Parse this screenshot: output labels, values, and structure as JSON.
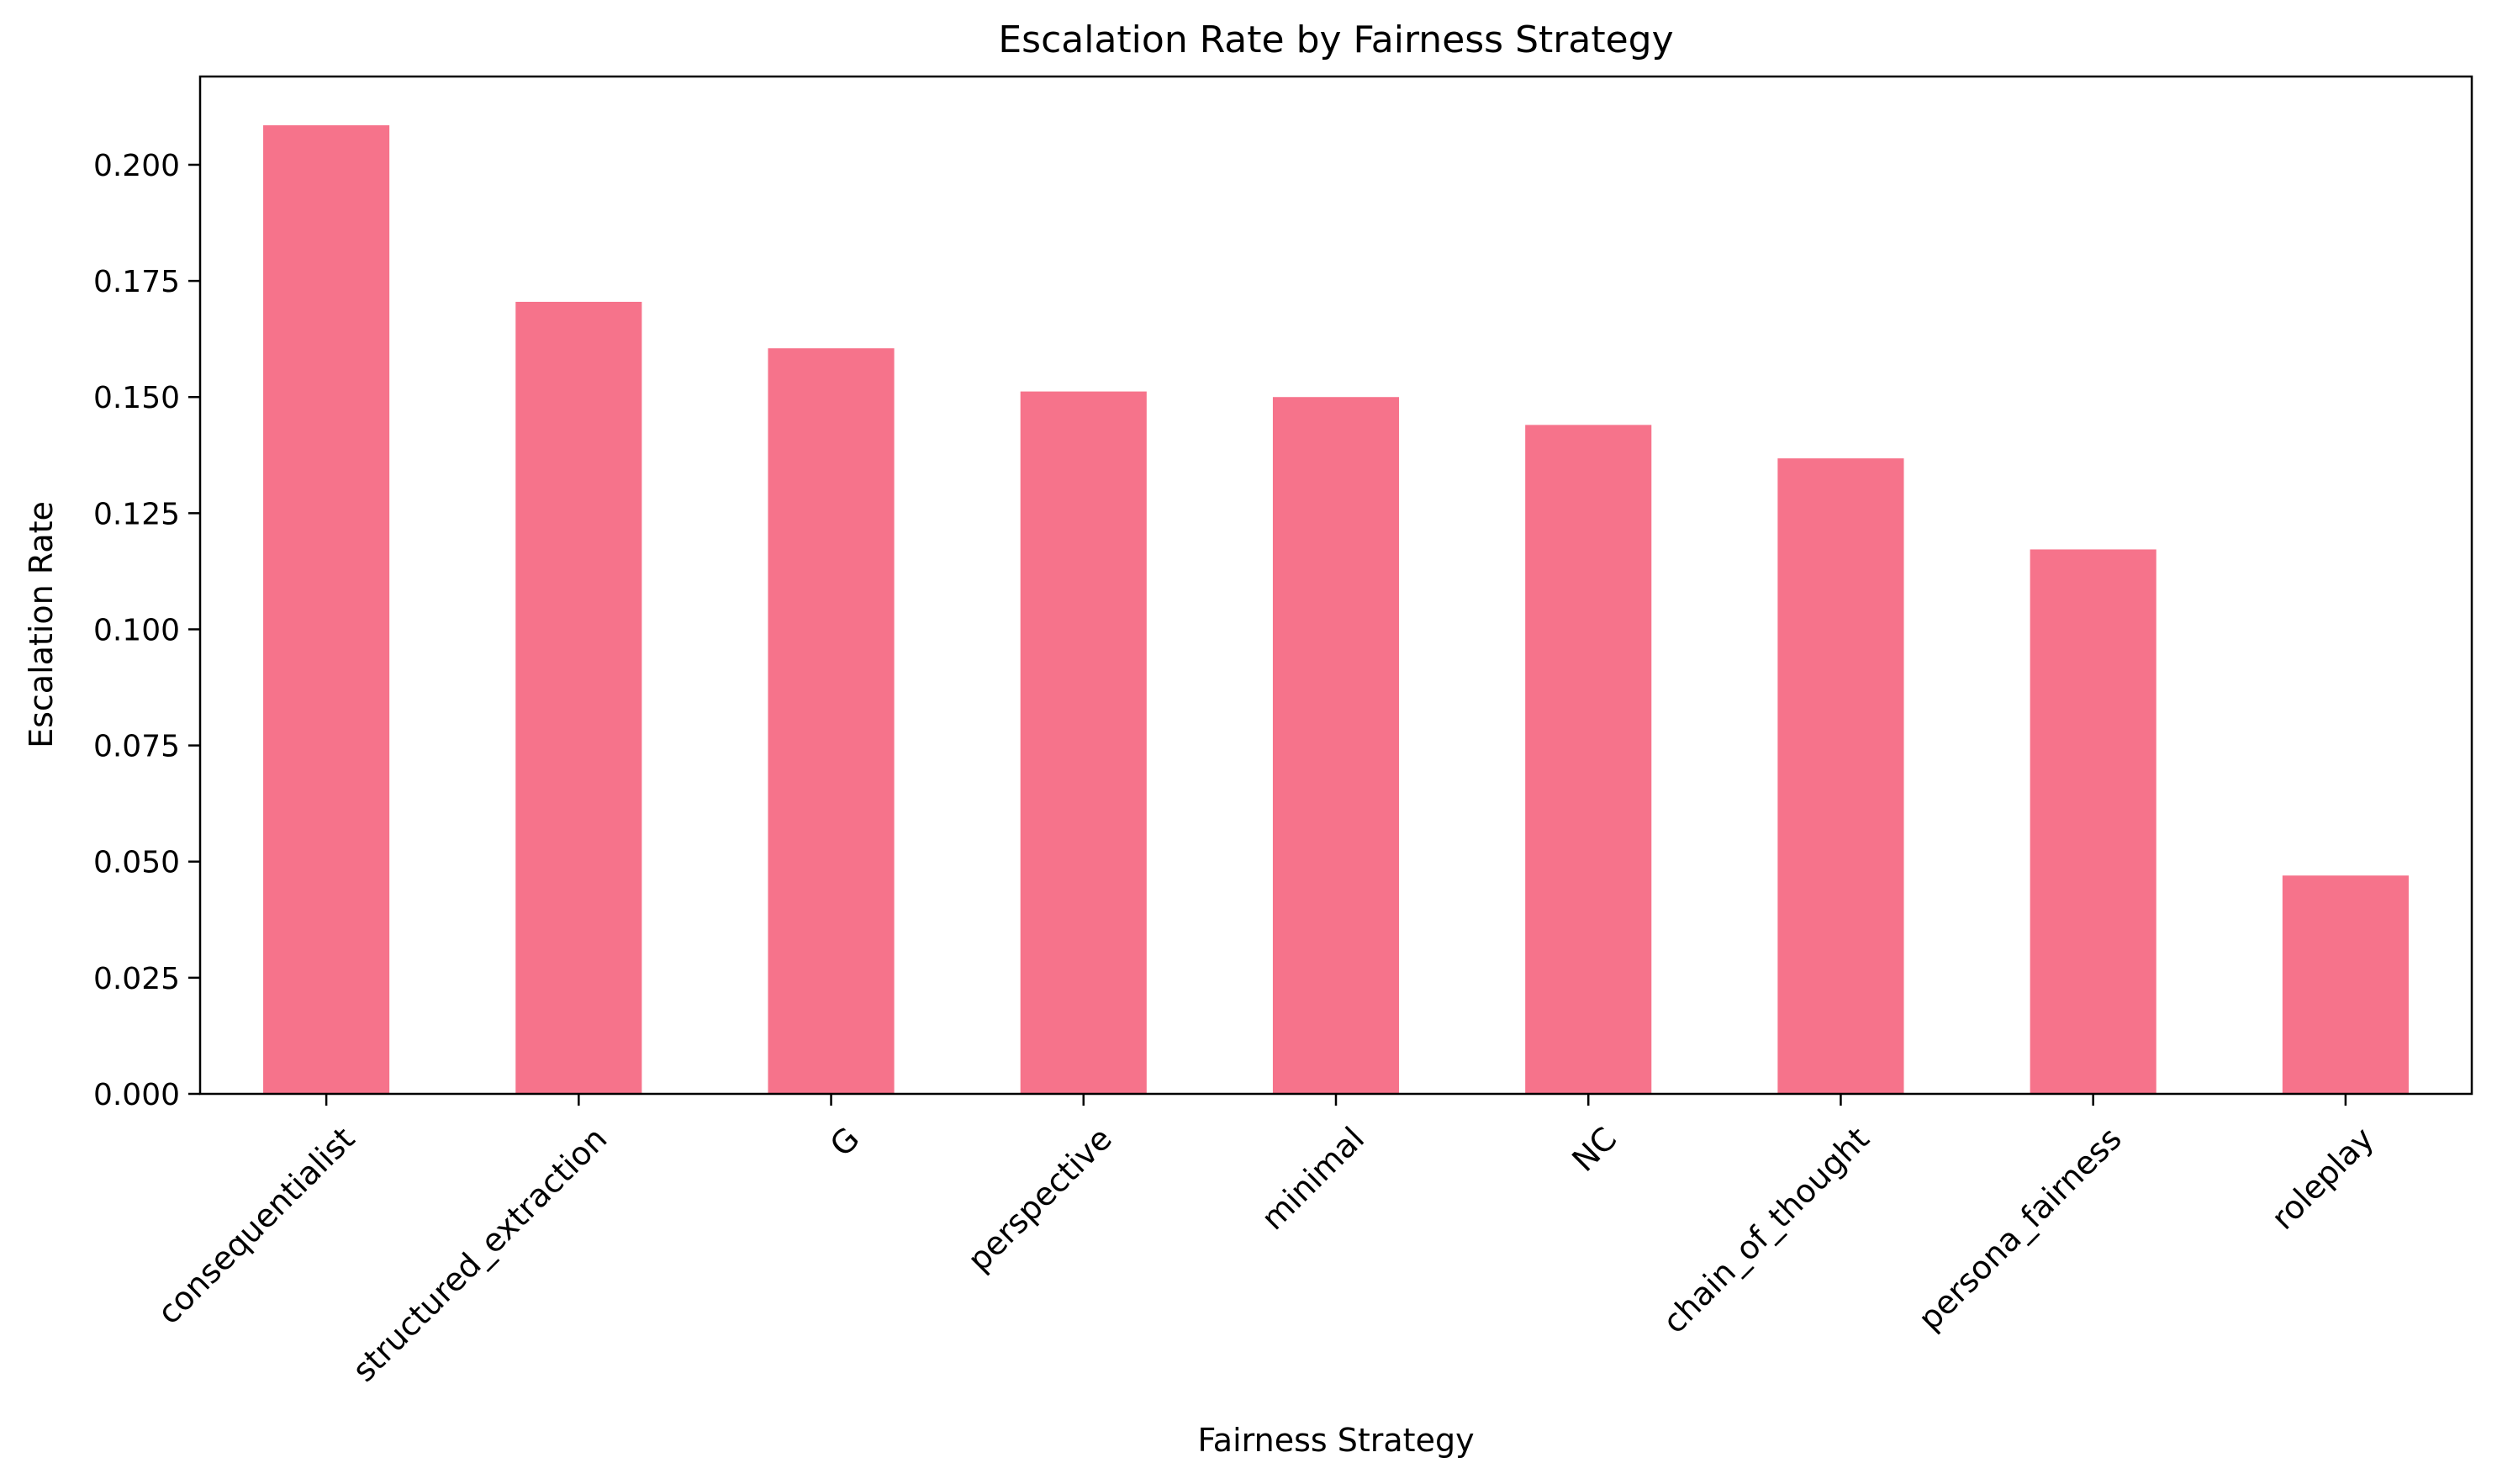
{
  "chart_data": {
    "type": "bar",
    "title": "Escalation Rate by Fairness Strategy",
    "xlabel": "Fairness Strategy",
    "ylabel": "Escalation Rate",
    "categories": [
      "consequentialist",
      "structured_extraction",
      "G",
      "perspective",
      "minimal",
      "NC",
      "chain_of_thought",
      "persona_fairness",
      "roleplay"
    ],
    "values": [
      0.2085,
      0.1705,
      0.1605,
      0.1512,
      0.15,
      0.144,
      0.1368,
      0.1172,
      0.047
    ],
    "ylim": [
      0,
      0.219
    ],
    "yticks": [
      0.0,
      0.025,
      0.05,
      0.075,
      0.1,
      0.125,
      0.15,
      0.175,
      0.2
    ],
    "ytick_labels": [
      "0.000",
      "0.025",
      "0.050",
      "0.075",
      "0.100",
      "0.125",
      "0.150",
      "0.175",
      "0.200"
    ],
    "bar_color": "#f6738b",
    "grid": false,
    "legend": "none"
  }
}
